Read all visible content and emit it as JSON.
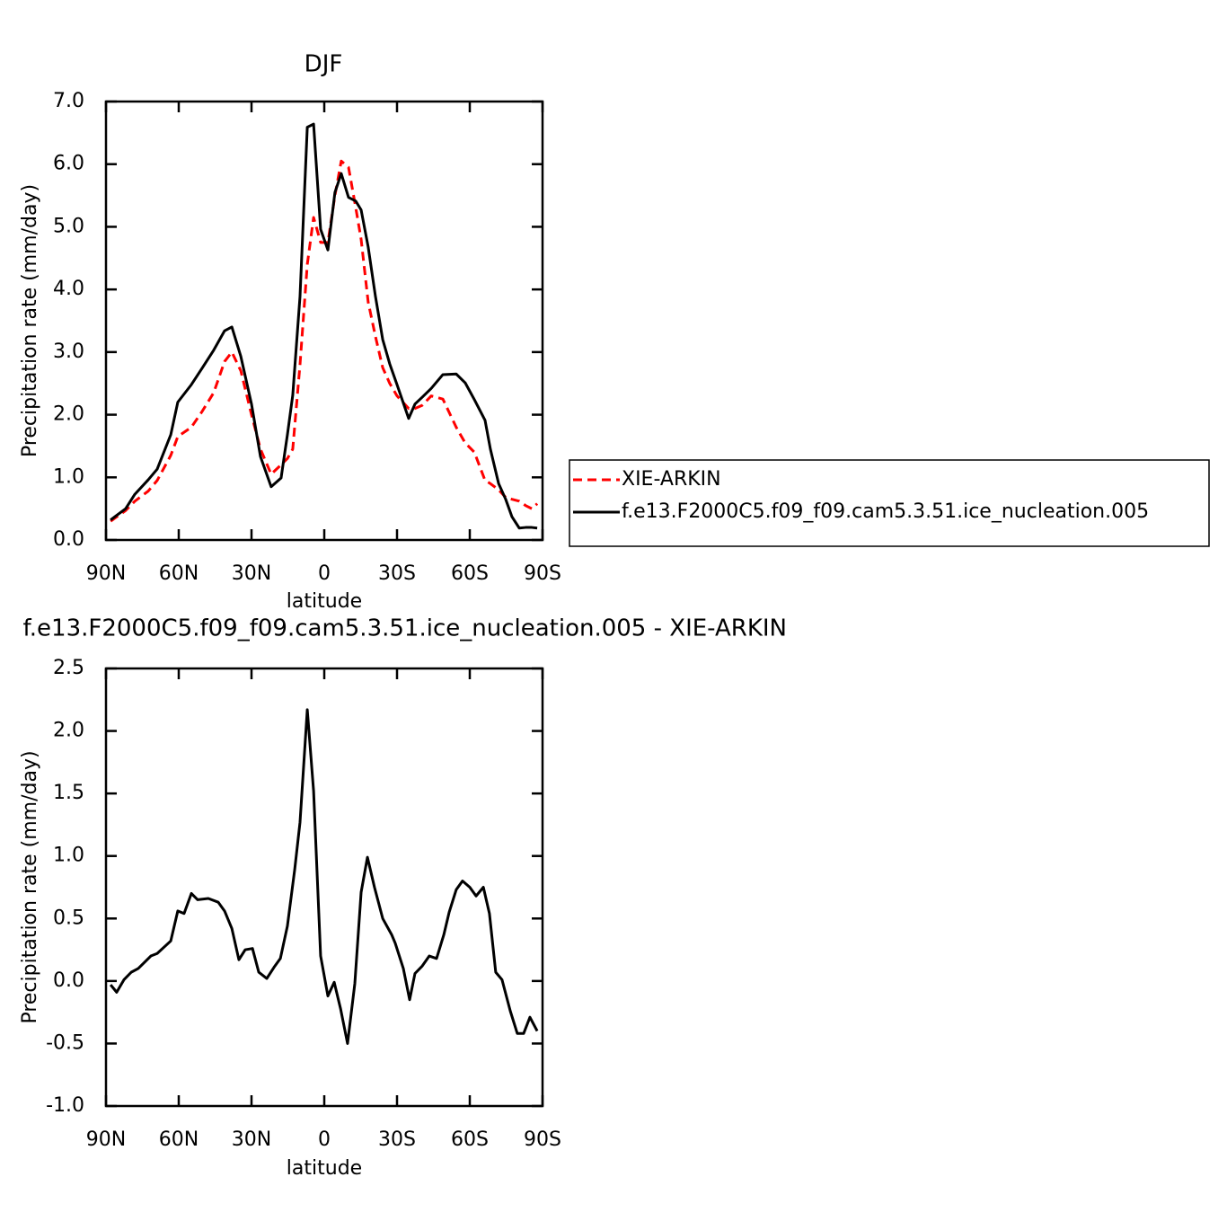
{
  "chart_data": [
    {
      "type": "line",
      "title": "DJF",
      "x_label": "latitude",
      "y_label": "Precipitation rate (mm/day)",
      "legend": "outside-right",
      "xlim": [
        90,
        -90
      ],
      "xticks": [
        {
          "value": 90,
          "label": "90N"
        },
        {
          "value": 60,
          "label": "60N"
        },
        {
          "value": 30,
          "label": "30N"
        },
        0,
        {
          "value": -30,
          "label": "30S"
        },
        {
          "value": -60,
          "label": "60S"
        },
        {
          "value": -90,
          "label": "90S"
        }
      ],
      "ylim": [
        0,
        7
      ],
      "yticks": [
        {
          "value": 0,
          "label": "0.0"
        },
        {
          "value": 1,
          "label": "1.0"
        },
        {
          "value": 2,
          "label": "2.0"
        },
        {
          "value": 3,
          "label": "3.0"
        },
        {
          "value": 4,
          "label": "4.0"
        },
        {
          "value": 5,
          "label": "5.0"
        },
        {
          "value": 6,
          "label": "6.0"
        },
        {
          "value": 7,
          "label": "7.0"
        }
      ],
      "x": [
        88.1,
        81.9,
        78.1,
        72.6,
        68.9,
        63.3,
        60.4,
        54.8,
        50.4,
        45.6,
        41.1,
        38.1,
        34.4,
        30,
        26.3,
        21.9,
        17.8,
        15.2,
        13,
        10,
        7,
        4.4,
        1.5,
        -1.5,
        -4.4,
        -7,
        -10,
        -13,
        -15.2,
        -18.1,
        -21.1,
        -24.1,
        -27,
        -30,
        -34.8,
        -37.4,
        -40.4,
        -44.1,
        -48.9,
        -54.4,
        -58.1,
        -61.9,
        -66.3,
        -68.5,
        -71.9,
        -74.8,
        -77.4,
        -80.4,
        -83,
        -85.6,
        -87.8
      ],
      "series": [
        {
          "name": "XIE-ARKIN",
          "color": "#ff0000",
          "dash": true,
          "values": [
            0.3,
            0.47,
            0.62,
            0.78,
            0.95,
            1.35,
            1.65,
            1.8,
            2.05,
            2.35,
            2.85,
            3.0,
            2.7,
            2.0,
            1.45,
            1.05,
            1.2,
            1.3,
            1.45,
            2.8,
            4.4,
            5.15,
            4.75,
            4.75,
            5.5,
            6.05,
            5.95,
            5.3,
            4.8,
            3.8,
            3.25,
            2.75,
            2.5,
            2.3,
            2.1,
            2.1,
            2.15,
            2.3,
            2.25,
            1.8,
            1.55,
            1.4,
            0.95,
            0.9,
            0.8,
            0.68,
            0.65,
            0.62,
            0.55,
            0.5,
            0.58
          ]
        },
        {
          "name": "f.e13.F2000C5.f09_f09.cam5.3.51.ice_nucleation.005",
          "color": "#000000",
          "dash": false,
          "values": [
            0.32,
            0.5,
            0.73,
            0.96,
            1.13,
            1.68,
            2.2,
            2.48,
            2.74,
            3.03,
            3.34,
            3.4,
            2.93,
            2.17,
            1.33,
            0.85,
            0.99,
            1.68,
            2.31,
            3.89,
            6.59,
            6.64,
            4.96,
            4.63,
            5.55,
            5.85,
            5.47,
            5.41,
            5.27,
            4.68,
            3.89,
            3.2,
            2.81,
            2.48,
            1.94,
            2.17,
            2.28,
            2.42,
            2.64,
            2.65,
            2.51,
            2.24,
            1.91,
            1.45,
            0.9,
            0.65,
            0.37,
            0.19,
            0.2,
            0.2,
            0.19
          ]
        }
      ]
    },
    {
      "type": "line",
      "title": "f.e13.F2000C5.f09_f09.cam5.3.51.ice_nucleation.005 - XIE-ARKIN",
      "x_label": "latitude",
      "y_label": "Precipitation rate (mm/day)",
      "xlim": [
        90,
        -90
      ],
      "xticks": [
        {
          "value": 90,
          "label": "90N"
        },
        {
          "value": 60,
          "label": "60N"
        },
        {
          "value": 30,
          "label": "30N"
        },
        0,
        {
          "value": -30,
          "label": "30S"
        },
        {
          "value": -60,
          "label": "60S"
        },
        {
          "value": -90,
          "label": "90S"
        }
      ],
      "ylim": [
        -1,
        2.5
      ],
      "yticks": [
        {
          "value": -1,
          "label": "-1.0"
        },
        {
          "value": -0.5,
          "label": "-0.5"
        },
        {
          "value": 0,
          "label": "0.0"
        },
        0.5,
        {
          "value": 1,
          "label": "1.0"
        },
        1.5,
        {
          "value": 2,
          "label": "2.0"
        },
        2.5
      ],
      "x": [
        88.1,
        85.6,
        82.6,
        79.6,
        76.7,
        71.5,
        68.9,
        63.3,
        60.4,
        57.8,
        54.8,
        52.2,
        47.8,
        43.7,
        41.1,
        38.1,
        35.2,
        32.6,
        29.6,
        27,
        23.7,
        20.7,
        18.1,
        15.2,
        12.2,
        10,
        7,
        4.4,
        1.5,
        -1.5,
        -4.1,
        -6.7,
        -9.6,
        -12.6,
        -15.2,
        -17.8,
        -20.7,
        -24.1,
        -27.8,
        -29.3,
        -32.6,
        -35.2,
        -37.4,
        -40.4,
        -43.3,
        -46.3,
        -49.3,
        -51.5,
        -54.4,
        -57,
        -60,
        -62.6,
        -65.6,
        -68.1,
        -70.7,
        -73.3,
        -76.7,
        -79.6,
        -82.2,
        -84.8,
        -87.8
      ],
      "series": [
        {
          "color": "#000000",
          "dash": false,
          "values": [
            -0.03,
            -0.09,
            0.01,
            0.07,
            0.1,
            0.2,
            0.22,
            0.32,
            0.56,
            0.54,
            0.7,
            0.65,
            0.66,
            0.63,
            0.56,
            0.42,
            0.17,
            0.25,
            0.26,
            0.07,
            0.02,
            0.11,
            0.18,
            0.44,
            0.89,
            1.27,
            2.17,
            1.52,
            0.2,
            -0.12,
            -0.01,
            -0.22,
            -0.5,
            -0.02,
            0.71,
            0.99,
            0.75,
            0.5,
            0.37,
            0.3,
            0.1,
            -0.15,
            0.06,
            0.12,
            0.2,
            0.18,
            0.37,
            0.55,
            0.73,
            0.8,
            0.75,
            0.68,
            0.75,
            0.54,
            0.07,
            0.01,
            -0.24,
            -0.42,
            -0.42,
            -0.29,
            -0.4
          ]
        }
      ]
    }
  ]
}
